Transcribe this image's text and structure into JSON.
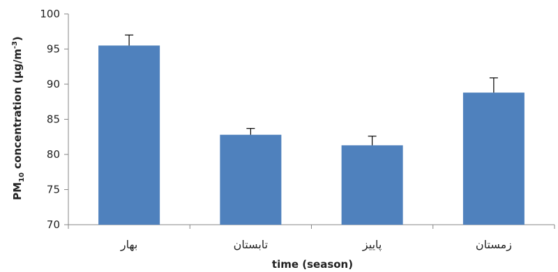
{
  "chart_data": {
    "type": "bar",
    "categories": [
      "بهار",
      "تابستان",
      "پاییز",
      "زمستان"
    ],
    "series": [
      {
        "values": [
          95.5,
          82.8,
          81.3,
          88.8
        ],
        "error_plus": [
          1.5,
          0.9,
          1.3,
          2.1
        ],
        "color": "#4F81BD"
      }
    ],
    "xlabel": "time (season)",
    "ylabel": {
      "prefix": "PM",
      "subscript": "10",
      "middle": " concentration (µg/m",
      "superscript": "-3",
      "suffix": ")"
    },
    "ylim": [
      70,
      100
    ],
    "yticks": [
      "70",
      "75",
      "80",
      "85",
      "90",
      "95",
      "100"
    ],
    "grid": false,
    "legend": "none"
  }
}
